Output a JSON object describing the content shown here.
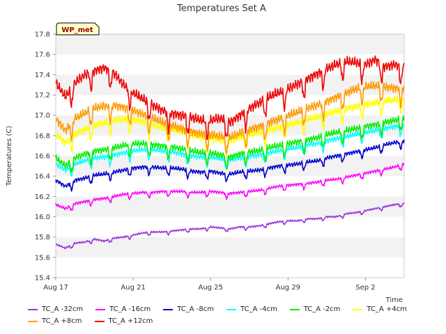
{
  "chart_data": {
    "type": "line",
    "title": "Temperatures Set A",
    "xlabel": "Time",
    "ylabel": "Temperatures (C)",
    "xlim": [
      0,
      18
    ],
    "ylim": [
      15.4,
      17.8
    ],
    "yticks": [
      15.4,
      15.6,
      15.8,
      16.0,
      16.2,
      16.4,
      16.6,
      16.8,
      17.0,
      17.2,
      17.4,
      17.6,
      17.8
    ],
    "yticklabels": [
      "15.4",
      "15.6",
      "15.8",
      "16.0",
      "16.2",
      "16.4",
      "16.6",
      "16.8",
      "17.0",
      "17.2",
      "17.4",
      "17.6",
      "17.8"
    ],
    "xticks": [
      0,
      4,
      8,
      12,
      16
    ],
    "xticklabels": [
      "Aug 17",
      "Aug 21",
      "Aug 25",
      "Aug 29",
      "Sep 2"
    ],
    "grid": "horizontal bands",
    "legend_placement": "bottom",
    "annotation": "WP_met",
    "x": [
      0,
      0.5,
      1,
      1.5,
      2,
      2.5,
      3,
      3.5,
      4,
      4.5,
      5,
      5.5,
      6,
      6.5,
      7,
      7.5,
      8,
      8.5,
      9,
      9.5,
      10,
      10.5,
      11,
      11.5,
      12,
      12.5,
      13,
      13.5,
      14,
      14.5,
      15,
      15.5,
      16,
      16.5,
      17,
      17.5,
      18
    ],
    "series": [
      {
        "name": "TC_A -32cm",
        "color": "#9933dd",
        "values": [
          15.73,
          15.69,
          15.74,
          15.75,
          15.78,
          15.76,
          15.79,
          15.8,
          15.82,
          15.84,
          15.85,
          15.85,
          15.86,
          15.87,
          15.88,
          15.88,
          15.9,
          15.89,
          15.88,
          15.9,
          15.9,
          15.91,
          15.93,
          15.95,
          15.96,
          15.96,
          15.98,
          15.98,
          16.0,
          16.0,
          16.03,
          16.04,
          16.06,
          16.08,
          16.1,
          16.12,
          16.13
        ]
      },
      {
        "name": "TC_A -16cm",
        "color": "#ff00ff",
        "values": [
          16.12,
          16.08,
          16.13,
          16.15,
          16.17,
          16.18,
          16.2,
          16.22,
          16.23,
          16.24,
          16.24,
          16.25,
          16.25,
          16.25,
          16.24,
          16.24,
          16.25,
          16.24,
          16.23,
          16.24,
          16.25,
          16.26,
          16.28,
          16.3,
          16.31,
          16.32,
          16.33,
          16.34,
          16.36,
          16.37,
          16.39,
          16.41,
          16.43,
          16.45,
          16.47,
          16.49,
          16.52
        ]
      },
      {
        "name": "TC_A -8cm",
        "color": "#0000cc",
        "values": [
          16.36,
          16.3,
          16.36,
          16.38,
          16.41,
          16.42,
          16.44,
          16.46,
          16.48,
          16.49,
          16.49,
          16.48,
          16.48,
          16.47,
          16.45,
          16.44,
          16.45,
          16.43,
          16.42,
          16.44,
          16.45,
          16.46,
          16.48,
          16.5,
          16.51,
          16.52,
          16.54,
          16.55,
          16.58,
          16.6,
          16.62,
          16.64,
          16.66,
          16.68,
          16.71,
          16.73,
          16.75
        ]
      },
      {
        "name": "TC_A -4cm",
        "color": "#00ffff",
        "values": [
          16.52,
          16.46,
          16.52,
          16.55,
          16.58,
          16.59,
          16.61,
          16.63,
          16.65,
          16.66,
          16.66,
          16.65,
          16.64,
          16.62,
          16.6,
          16.59,
          16.59,
          16.57,
          16.56,
          16.58,
          16.6,
          16.61,
          16.63,
          16.65,
          16.67,
          16.68,
          16.71,
          16.72,
          16.75,
          16.77,
          16.79,
          16.81,
          16.83,
          16.85,
          16.87,
          16.89,
          16.9
        ]
      },
      {
        "name": "TC_A -2cm",
        "color": "#00ee00",
        "values": [
          16.58,
          16.5,
          16.58,
          16.62,
          16.65,
          16.66,
          16.68,
          16.7,
          16.72,
          16.72,
          16.71,
          16.7,
          16.69,
          16.67,
          16.65,
          16.63,
          16.63,
          16.61,
          16.59,
          16.62,
          16.64,
          16.65,
          16.68,
          16.7,
          16.72,
          16.74,
          16.76,
          16.78,
          16.81,
          16.83,
          16.85,
          16.87,
          16.89,
          16.91,
          16.93,
          16.95,
          16.97
        ]
      },
      {
        "name": "TC_A +4cm",
        "color": "#ffff00",
        "values": [
          16.82,
          16.73,
          16.82,
          16.86,
          16.9,
          16.92,
          16.95,
          16.96,
          16.96,
          16.94,
          16.91,
          16.88,
          16.86,
          16.84,
          16.81,
          16.79,
          16.78,
          16.76,
          16.75,
          16.78,
          16.81,
          16.83,
          16.86,
          16.88,
          16.91,
          16.93,
          16.96,
          16.98,
          17.01,
          17.04,
          17.07,
          17.09,
          17.11,
          17.12,
          17.14,
          17.15,
          17.16
        ]
      },
      {
        "name": "TC_A +8cm",
        "color": "#ff9900",
        "values": [
          16.97,
          16.85,
          16.97,
          17.02,
          17.07,
          17.09,
          17.1,
          17.08,
          17.05,
          17.01,
          16.97,
          16.93,
          16.9,
          16.87,
          16.84,
          16.82,
          16.81,
          16.79,
          16.78,
          16.82,
          16.86,
          16.89,
          16.93,
          16.96,
          17.0,
          17.03,
          17.07,
          17.1,
          17.14,
          17.18,
          17.22,
          17.26,
          17.28,
          17.29,
          17.28,
          17.27,
          17.27
        ]
      },
      {
        "name": "TC_A +12cm",
        "color": "#ee0000",
        "values": [
          17.32,
          17.18,
          17.32,
          17.4,
          17.44,
          17.47,
          17.42,
          17.3,
          17.22,
          17.16,
          17.1,
          17.05,
          17.02,
          17.0,
          16.98,
          16.95,
          16.95,
          16.97,
          16.93,
          17.0,
          17.07,
          17.12,
          17.18,
          17.22,
          17.26,
          17.31,
          17.36,
          17.41,
          17.46,
          17.5,
          17.53,
          17.52,
          17.5,
          17.55,
          17.48,
          17.5,
          17.48
        ]
      }
    ]
  }
}
